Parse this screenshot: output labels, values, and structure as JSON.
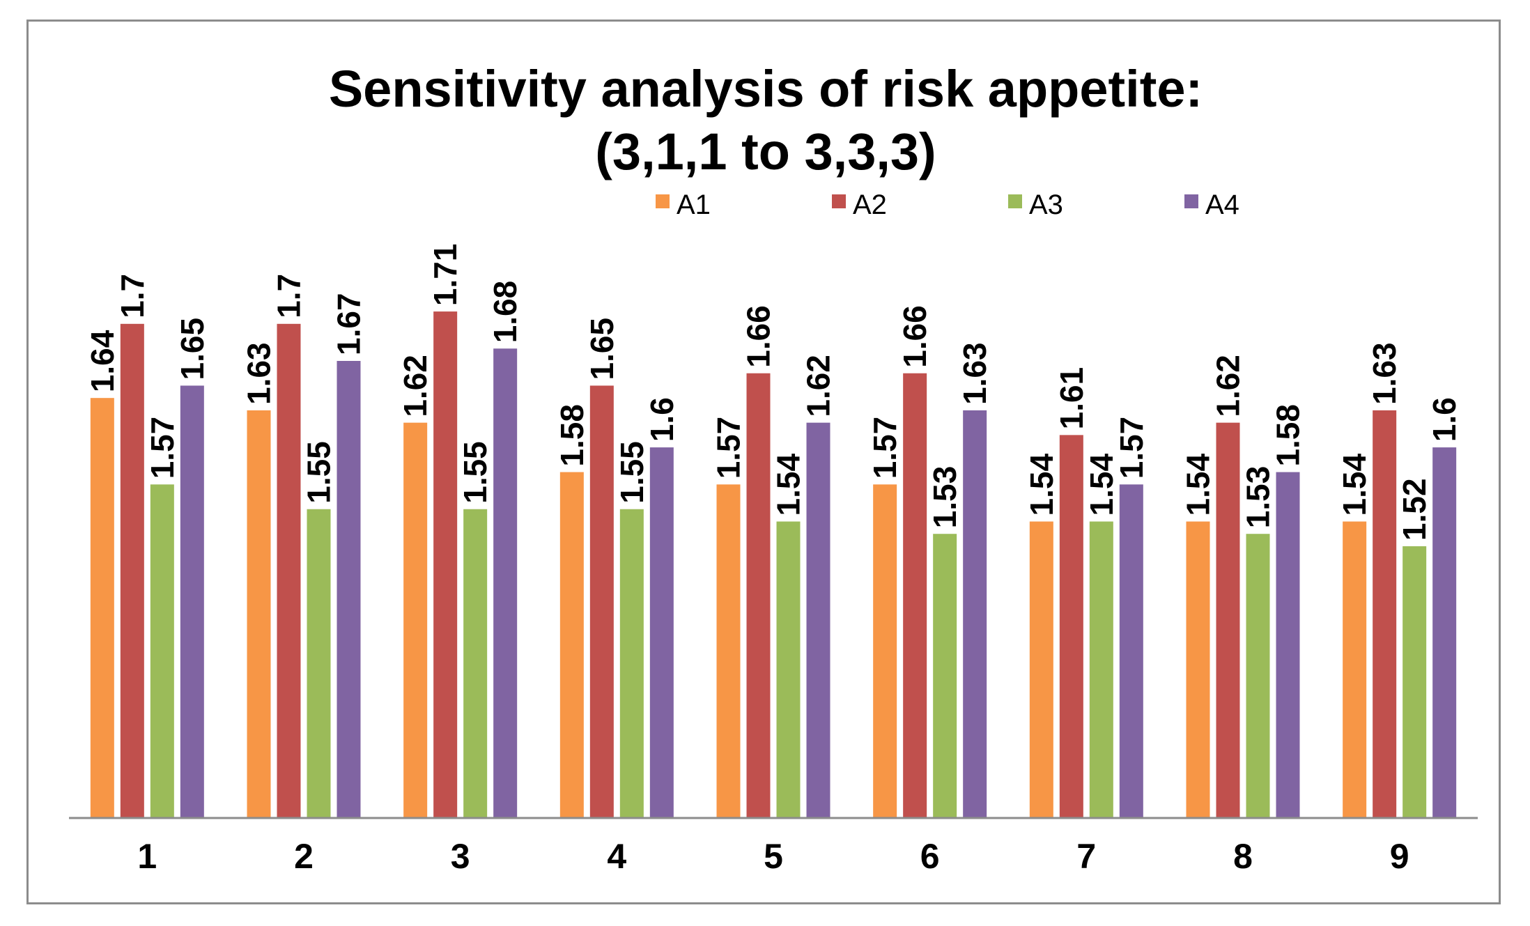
{
  "chart_data": {
    "type": "bar",
    "title": "Sensitivity analysis of risk appetite:",
    "subtitle": "(3,1,1 to 3,3,3)",
    "xlabel": "",
    "ylabel": "",
    "categories": [
      "1",
      "2",
      "3",
      "4",
      "5",
      "6",
      "7",
      "8",
      "9"
    ],
    "ylim": [
      1.3,
      1.8
    ],
    "grid": false,
    "legend_position": "top",
    "data_labels": true,
    "series": [
      {
        "name": "A1",
        "color": "#F79646",
        "values": [
          1.64,
          1.63,
          1.62,
          1.58,
          1.57,
          1.57,
          1.54,
          1.54,
          1.54
        ]
      },
      {
        "name": "A2",
        "color": "#C0504D",
        "values": [
          1.7,
          1.7,
          1.71,
          1.65,
          1.66,
          1.66,
          1.61,
          1.62,
          1.63
        ]
      },
      {
        "name": "A3",
        "color": "#9BBB59",
        "values": [
          1.57,
          1.55,
          1.55,
          1.55,
          1.54,
          1.53,
          1.54,
          1.53,
          1.52
        ]
      },
      {
        "name": "A4",
        "color": "#8064A2",
        "values": [
          1.65,
          1.67,
          1.68,
          1.6,
          1.62,
          1.63,
          1.57,
          1.58,
          1.6
        ]
      }
    ]
  }
}
